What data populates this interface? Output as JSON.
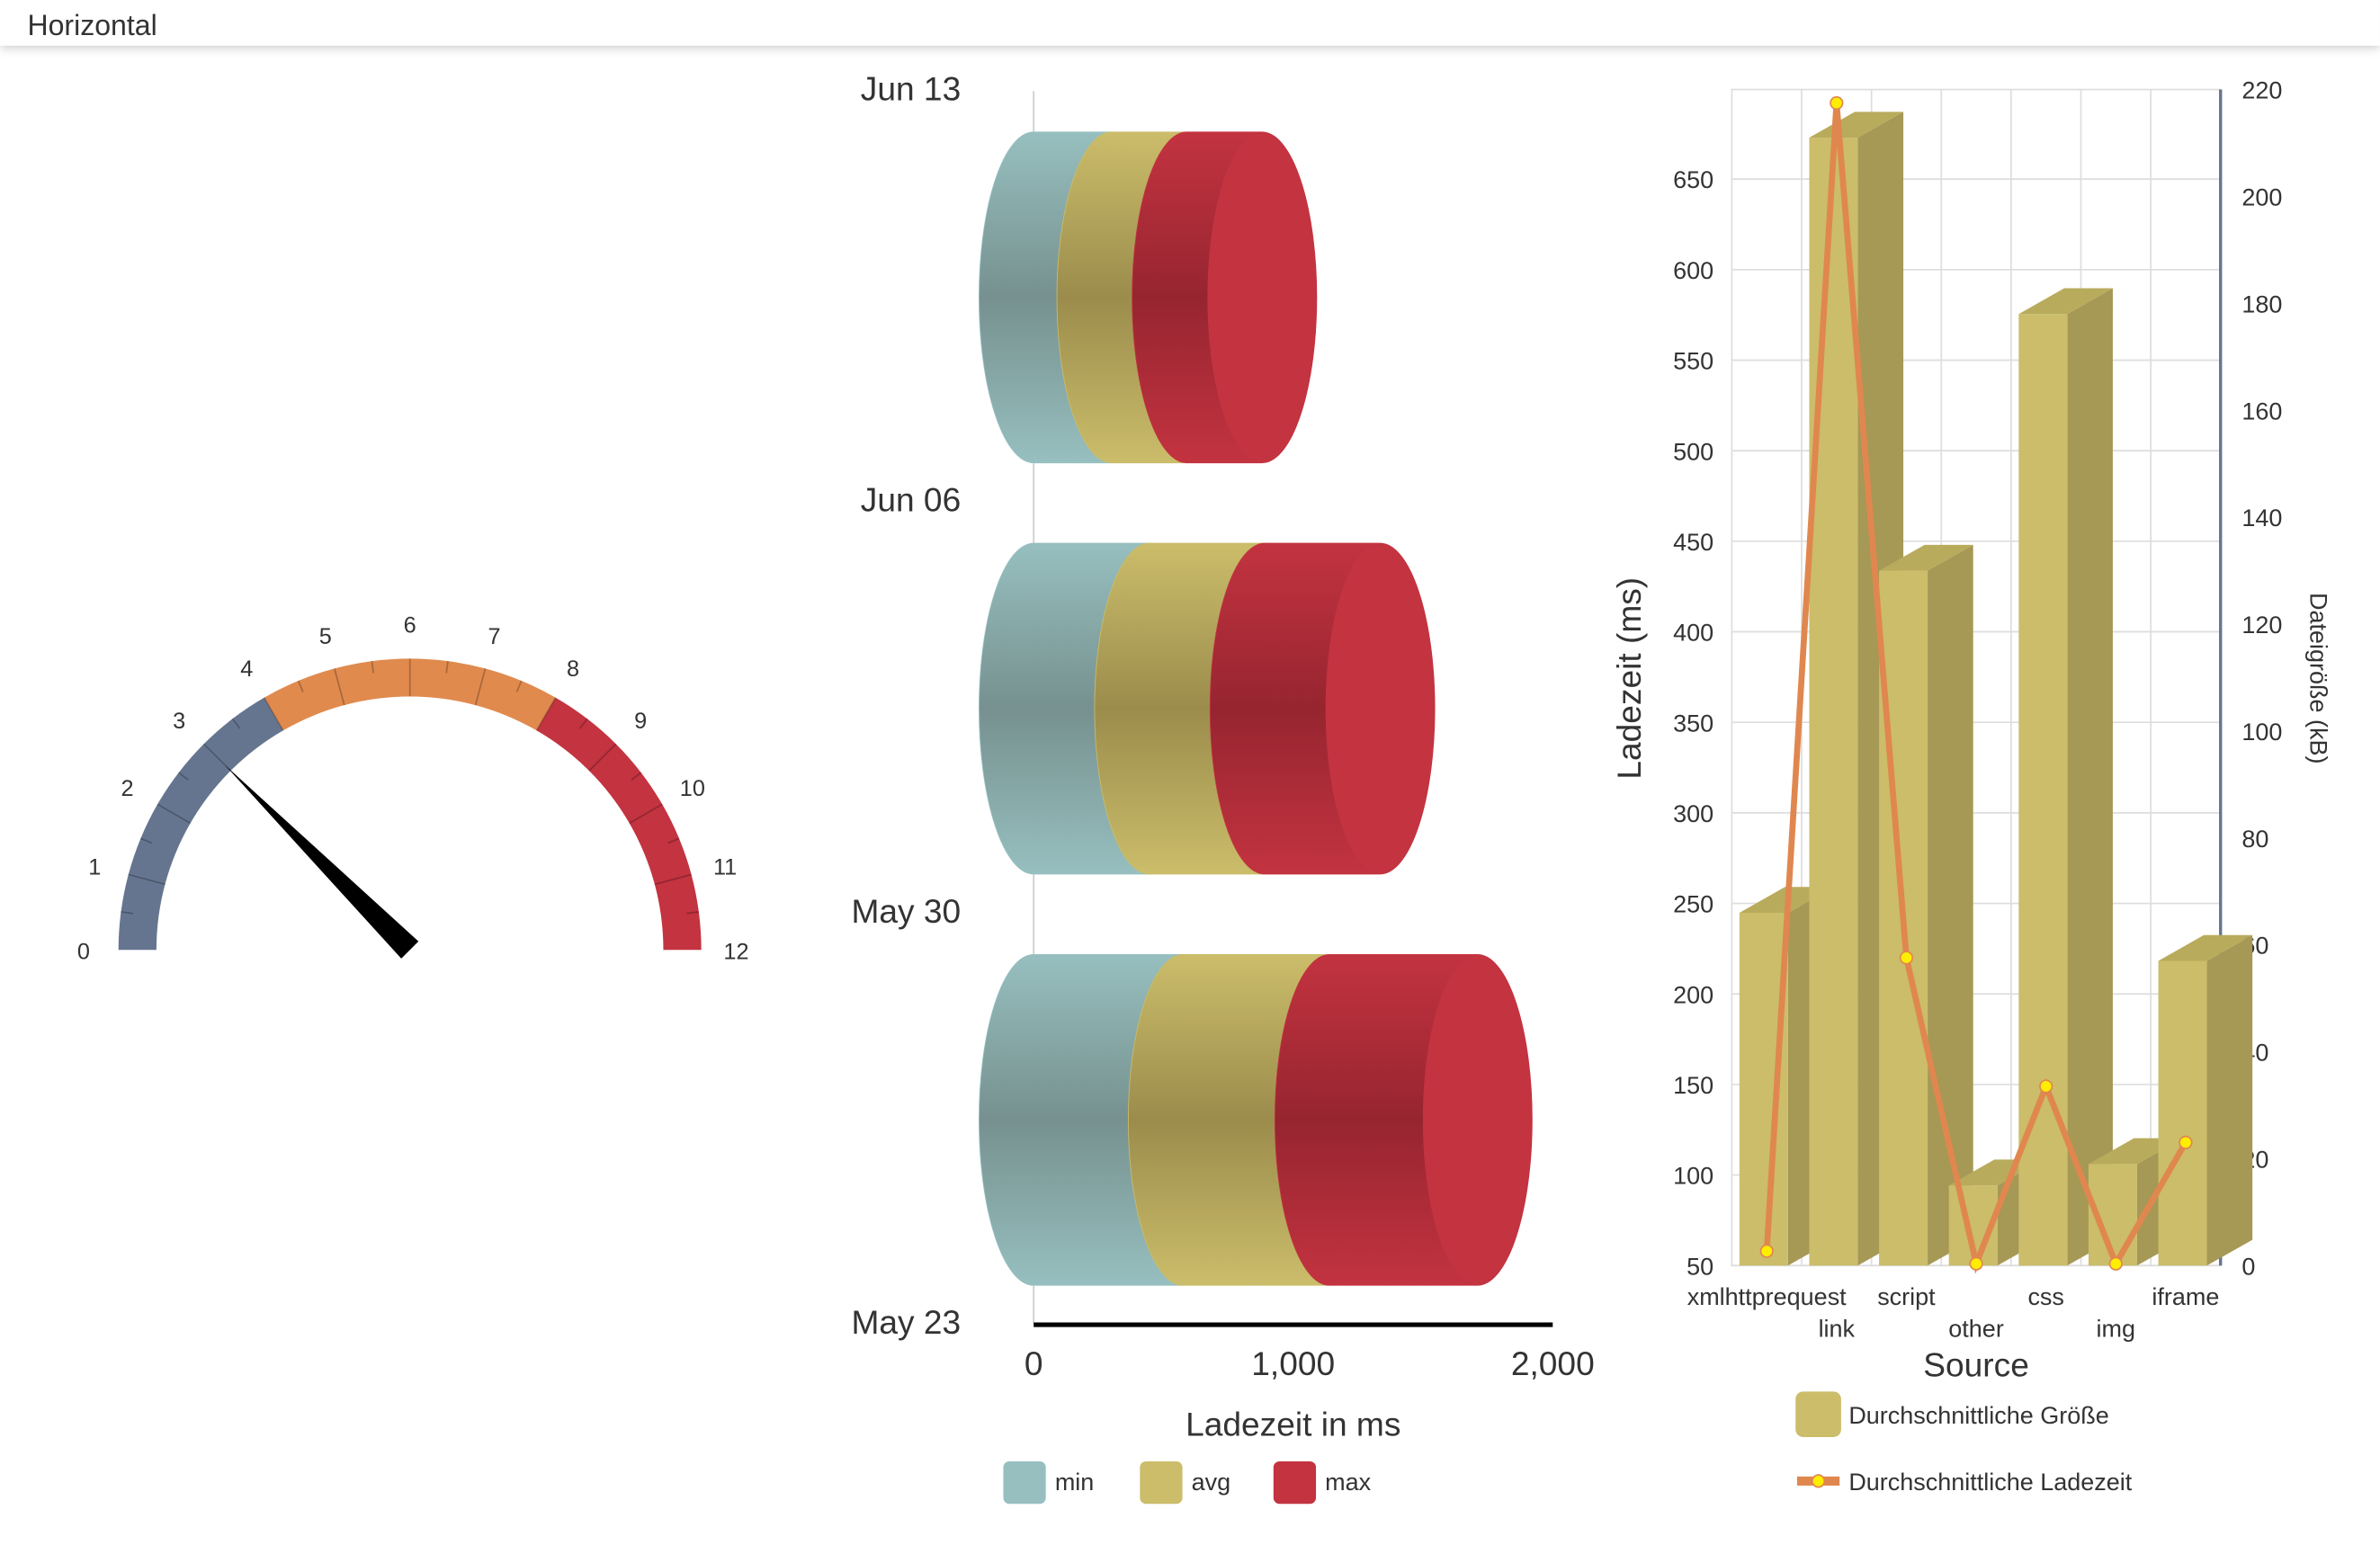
{
  "header": {
    "title": "Horizontal"
  },
  "colors": {
    "slate": "#66758f",
    "orange": "#e08a4e",
    "red": "#c33340",
    "teal": "#97bfbf",
    "gold": "#cbbd6a",
    "goldDark": "#a69855",
    "line": "#e0874f",
    "marker": "#ffee00"
  },
  "chart_data": [
    {
      "type": "gauge",
      "min": 0,
      "max": 12,
      "tick_labels": [
        "0",
        "1",
        "2",
        "3",
        "4",
        "5",
        "6",
        "7",
        "8",
        "9",
        "10",
        "11",
        "12"
      ],
      "bands": [
        {
          "from": 0,
          "to": 4,
          "color": "#66758f"
        },
        {
          "from": 4,
          "to": 8,
          "color": "#e08a4e"
        },
        {
          "from": 8,
          "to": 12,
          "color": "#c33340"
        }
      ],
      "value": 3
    },
    {
      "type": "bar",
      "orientation": "horizontal-stacked-3d-cylinder",
      "categories": [
        "Jun 13",
        "Jun 06",
        "May 30"
      ],
      "extra_category_label": "May 23",
      "series": [
        {
          "name": "min",
          "color": "#97bfbf",
          "values": [
            300,
            445,
            575
          ]
        },
        {
          "name": "avg",
          "color": "#cbbd6a",
          "values": [
            290,
            445,
            565
          ]
        },
        {
          "name": "max",
          "color": "#c33340",
          "values": [
            290,
            445,
            570
          ]
        }
      ],
      "xlabel": "Ladezeit in ms",
      "xlim": [
        0,
        2000
      ],
      "x_ticks": [
        "0",
        "1,000",
        "2,000"
      ],
      "legend": [
        "min",
        "avg",
        "max"
      ],
      "legend_position": "bottom"
    },
    {
      "type": "bar+line",
      "categories": [
        "xmlhttprequest",
        "link",
        "script",
        "other",
        "css",
        "img",
        "iframe"
      ],
      "series": [
        {
          "name": "Durchschnittliche Größe",
          "type": "bar",
          "axis": "right",
          "values": [
            66,
            211,
            130,
            15,
            178,
            19,
            57
          ]
        },
        {
          "name": "Durchschnittliche Ladezeit",
          "type": "line",
          "axis": "left",
          "values": [
            58,
            692,
            220,
            51,
            149,
            51,
            118
          ]
        }
      ],
      "xlabel": "Source",
      "ylabel": "Ladezeit (ms)",
      "y2label": "Dateigröße (kB)",
      "ylim": [
        50,
        680
      ],
      "y2lim": [
        0,
        220
      ],
      "y_ticks": [
        "50",
        "100",
        "150",
        "200",
        "250",
        "300",
        "350",
        "400",
        "450",
        "500",
        "550",
        "600",
        "650"
      ],
      "y2_ticks": [
        "0",
        "20",
        "40",
        "60",
        "80",
        "100",
        "120",
        "140",
        "160",
        "180",
        "200",
        "220"
      ],
      "legend_position": "bottom"
    }
  ]
}
